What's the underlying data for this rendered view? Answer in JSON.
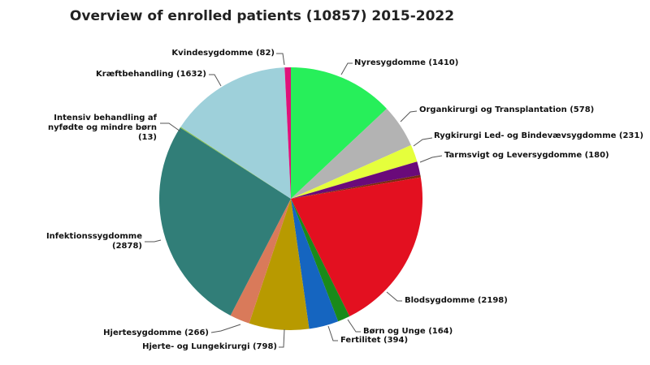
{
  "chart_data": {
    "type": "pie",
    "title": "Overview of enrolled patients (10857) 2015-2022",
    "start": "top",
    "direction": "clockwise",
    "slices": [
      {
        "label": "Nyresygdomme (1410)",
        "value": 1410,
        "color": "#27ef5a"
      },
      {
        "label": "Organkirurgi og Transplantation (578)",
        "value": 578,
        "color": "#b3b3b3"
      },
      {
        "label": "Rygkirurgi Led- og Bindevævsygdomme (231)",
        "value": 231,
        "color": "#e5ff3c"
      },
      {
        "label": "Tarmsvigt og Leversygdomme (180)",
        "value": 180,
        "color": "#6a0a7a"
      },
      {
        "label": "",
        "value": 33,
        "color": "#7a2a10"
      },
      {
        "label": "Blodsygdomme (2198)",
        "value": 2198,
        "color": "#e31020"
      },
      {
        "label": "Børn og Unge (164)",
        "value": 164,
        "color": "#1a8a1a"
      },
      {
        "label": "Fertilitet (394)",
        "value": 394,
        "color": "#1565c0"
      },
      {
        "label": "Hjerte- og Lungekirurgi (798)",
        "value": 798,
        "color": "#b89a00"
      },
      {
        "label": "Hjertesygdomme (266)",
        "value": 266,
        "color": "#d97a5a"
      },
      {
        "label": "Infektionssygdomme (2878)",
        "value": 2878,
        "color": "#317e78"
      },
      {
        "label": "Intensiv behandling af nyfødte og mindre børn (13)",
        "value": 13,
        "color": "#8bc34a"
      },
      {
        "label": "Kræftbehandling (1632)",
        "value": 1632,
        "color": "#9ed0da"
      },
      {
        "label": "Kvindesygdomme (82)",
        "value": 82,
        "color": "#e0127a"
      }
    ]
  }
}
